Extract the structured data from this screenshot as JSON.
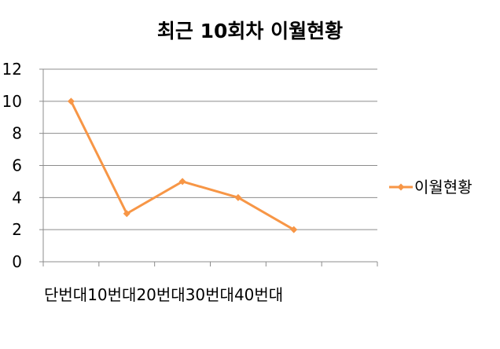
{
  "chart_data": {
    "type": "line",
    "title": "최근 10회차 이월현황",
    "categories": [
      "단번대",
      "10번대",
      "20번대",
      "30번대",
      "40번대"
    ],
    "series": [
      {
        "name": "이월현황",
        "values": [
          10,
          3,
          5,
          4,
          2
        ],
        "color": "#F79646"
      }
    ],
    "xlabel": "",
    "ylabel": "",
    "ylim": [
      0,
      12
    ],
    "yticks": [
      "0",
      "2",
      "4",
      "6",
      "8",
      "10",
      "12"
    ],
    "grid": true,
    "legend_position": "right",
    "marker": "diamond"
  }
}
